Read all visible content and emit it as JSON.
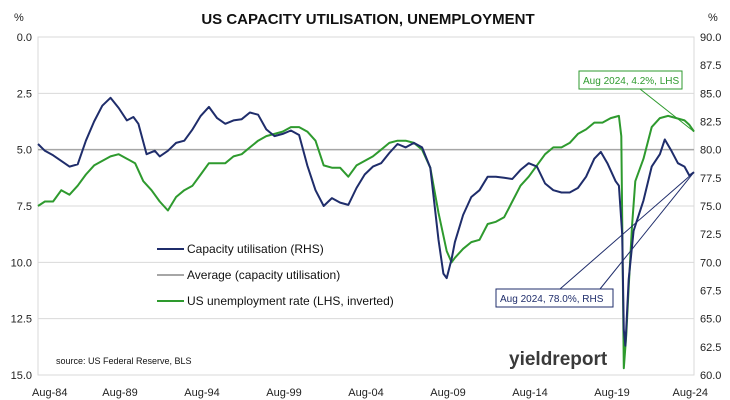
{
  "chart_data": {
    "type": "line",
    "title": "US CAPACITY UTILISATION, UNEMPLOYMENT",
    "source": "source: US Federal Reserve, BLS",
    "logo_text": "yieldreport",
    "y_left": {
      "label": "%",
      "ticks": [
        "0.0",
        "2.5",
        "5.0",
        "7.5",
        "10.0",
        "12.5",
        "15.0"
      ],
      "range": [
        0,
        15
      ],
      "inverted": true
    },
    "y_right": {
      "label": "%",
      "ticks": [
        "60.0",
        "62.5",
        "65.0",
        "67.5",
        "70.0",
        "72.5",
        "75.0",
        "77.5",
        "80.0",
        "82.5",
        "85.0",
        "87.5",
        "90.0"
      ],
      "range": [
        60,
        90
      ]
    },
    "x_ticks": [
      "Aug-84",
      "Aug-89",
      "Aug-94",
      "Aug-99",
      "Aug-04",
      "Aug-09",
      "Aug-14",
      "Aug-19",
      "Aug-24"
    ],
    "x_range": [
      1984.58,
      2024.58
    ],
    "colors": {
      "capacity": "#1f2d6b",
      "average": "#a6a6a6",
      "unemployment": "#2e9a2e",
      "grid": "#d9d9d9"
    },
    "average_capacity": 80.0,
    "legend": [
      {
        "label": "Capacity utilisation (RHS)",
        "key": "capacity"
      },
      {
        "label": "Average (capacity utilisation)",
        "key": "average"
      },
      {
        "label": "US unemployment rate (LHS, inverted)",
        "key": "unemployment"
      }
    ],
    "annotations": {
      "unemployment": {
        "text": "Aug 2024, 4.2%, LHS",
        "x": 2024.58,
        "y": 4.2
      },
      "capacity": {
        "text": "Aug 2024, 78.0%, RHS",
        "x": 2024.58,
        "y": 78.0
      }
    },
    "series": [
      {
        "name": "Capacity utilisation (RHS)",
        "axis": "right",
        "points": [
          [
            1984.58,
            80.5
          ],
          [
            1985.0,
            79.9
          ],
          [
            1985.5,
            79.5
          ],
          [
            1986.0,
            79.0
          ],
          [
            1986.5,
            78.5
          ],
          [
            1987.0,
            78.7
          ],
          [
            1987.5,
            80.8
          ],
          [
            1988.0,
            82.5
          ],
          [
            1988.5,
            83.9
          ],
          [
            1989.0,
            84.6
          ],
          [
            1989.5,
            83.7
          ],
          [
            1990.0,
            82.6
          ],
          [
            1990.4,
            82.9
          ],
          [
            1990.7,
            82.3
          ],
          [
            1991.2,
            79.6
          ],
          [
            1991.7,
            79.9
          ],
          [
            1992.0,
            79.4
          ],
          [
            1992.5,
            79.9
          ],
          [
            1993.0,
            80.6
          ],
          [
            1993.5,
            80.8
          ],
          [
            1994.0,
            81.8
          ],
          [
            1994.5,
            83.0
          ],
          [
            1995.0,
            83.8
          ],
          [
            1995.5,
            82.8
          ],
          [
            1996.0,
            82.3
          ],
          [
            1996.5,
            82.6
          ],
          [
            1997.0,
            82.7
          ],
          [
            1997.5,
            83.3
          ],
          [
            1998.0,
            83.1
          ],
          [
            1998.5,
            81.8
          ],
          [
            1999.0,
            81.2
          ],
          [
            1999.5,
            81.4
          ],
          [
            2000.0,
            81.7
          ],
          [
            2000.5,
            81.3
          ],
          [
            2001.0,
            78.6
          ],
          [
            2001.5,
            76.4
          ],
          [
            2002.0,
            75.0
          ],
          [
            2002.5,
            75.7
          ],
          [
            2003.0,
            75.3
          ],
          [
            2003.5,
            75.1
          ],
          [
            2004.0,
            76.6
          ],
          [
            2004.5,
            77.8
          ],
          [
            2005.0,
            78.5
          ],
          [
            2005.5,
            78.8
          ],
          [
            2006.0,
            79.7
          ],
          [
            2006.5,
            80.5
          ],
          [
            2007.0,
            80.2
          ],
          [
            2007.5,
            80.6
          ],
          [
            2008.0,
            80.2
          ],
          [
            2008.5,
            78.4
          ],
          [
            2009.0,
            72.0
          ],
          [
            2009.3,
            69.0
          ],
          [
            2009.5,
            68.6
          ],
          [
            2009.8,
            70.3
          ],
          [
            2010.0,
            71.8
          ],
          [
            2010.5,
            74.2
          ],
          [
            2011.0,
            75.8
          ],
          [
            2011.5,
            76.4
          ],
          [
            2012.0,
            77.6
          ],
          [
            2012.5,
            77.6
          ],
          [
            2013.0,
            77.5
          ],
          [
            2013.5,
            77.4
          ],
          [
            2014.0,
            78.2
          ],
          [
            2014.5,
            78.8
          ],
          [
            2015.0,
            78.5
          ],
          [
            2015.5,
            77.0
          ],
          [
            2016.0,
            76.4
          ],
          [
            2016.5,
            76.2
          ],
          [
            2017.0,
            76.2
          ],
          [
            2017.5,
            76.6
          ],
          [
            2018.0,
            77.6
          ],
          [
            2018.5,
            79.2
          ],
          [
            2018.9,
            79.8
          ],
          [
            2019.3,
            78.8
          ],
          [
            2019.8,
            77.2
          ],
          [
            2020.0,
            76.8
          ],
          [
            2020.2,
            72.5
          ],
          [
            2020.3,
            64.0
          ],
          [
            2020.4,
            62.6
          ],
          [
            2020.6,
            68.5
          ],
          [
            2020.9,
            72.8
          ],
          [
            2021.5,
            75.5
          ],
          [
            2022.0,
            78.5
          ],
          [
            2022.5,
            79.6
          ],
          [
            2022.8,
            80.9
          ],
          [
            2023.2,
            79.9
          ],
          [
            2023.6,
            78.8
          ],
          [
            2024.0,
            78.5
          ],
          [
            2024.3,
            77.7
          ],
          [
            2024.58,
            78.0
          ]
        ]
      },
      {
        "name": "US unemployment rate (LHS, inverted)",
        "axis": "left",
        "points": [
          [
            1984.58,
            7.5
          ],
          [
            1985.0,
            7.3
          ],
          [
            1985.5,
            7.3
          ],
          [
            1986.0,
            6.8
          ],
          [
            1986.5,
            7.0
          ],
          [
            1987.0,
            6.6
          ],
          [
            1987.5,
            6.1
          ],
          [
            1988.0,
            5.7
          ],
          [
            1988.5,
            5.5
          ],
          [
            1989.0,
            5.3
          ],
          [
            1989.5,
            5.2
          ],
          [
            1990.0,
            5.4
          ],
          [
            1990.5,
            5.6
          ],
          [
            1991.0,
            6.4
          ],
          [
            1991.5,
            6.8
          ],
          [
            1992.0,
            7.3
          ],
          [
            1992.5,
            7.7
          ],
          [
            1993.0,
            7.1
          ],
          [
            1993.5,
            6.8
          ],
          [
            1994.0,
            6.6
          ],
          [
            1994.5,
            6.1
          ],
          [
            1995.0,
            5.6
          ],
          [
            1995.5,
            5.6
          ],
          [
            1996.0,
            5.6
          ],
          [
            1996.5,
            5.3
          ],
          [
            1997.0,
            5.2
          ],
          [
            1997.5,
            4.9
          ],
          [
            1998.0,
            4.6
          ],
          [
            1998.5,
            4.4
          ],
          [
            1999.0,
            4.3
          ],
          [
            1999.5,
            4.2
          ],
          [
            2000.0,
            4.0
          ],
          [
            2000.5,
            4.0
          ],
          [
            2001.0,
            4.2
          ],
          [
            2001.5,
            4.6
          ],
          [
            2002.0,
            5.7
          ],
          [
            2002.5,
            5.8
          ],
          [
            2003.0,
            5.8
          ],
          [
            2003.5,
            6.2
          ],
          [
            2004.0,
            5.7
          ],
          [
            2004.5,
            5.5
          ],
          [
            2005.0,
            5.3
          ],
          [
            2005.5,
            5.0
          ],
          [
            2006.0,
            4.7
          ],
          [
            2006.5,
            4.6
          ],
          [
            2007.0,
            4.6
          ],
          [
            2007.5,
            4.7
          ],
          [
            2008.0,
            5.0
          ],
          [
            2008.5,
            5.8
          ],
          [
            2009.0,
            7.8
          ],
          [
            2009.5,
            9.5
          ],
          [
            2009.8,
            10.0
          ],
          [
            2010.0,
            9.8
          ],
          [
            2010.5,
            9.4
          ],
          [
            2011.0,
            9.1
          ],
          [
            2011.5,
            9.0
          ],
          [
            2012.0,
            8.3
          ],
          [
            2012.5,
            8.2
          ],
          [
            2013.0,
            8.0
          ],
          [
            2013.5,
            7.3
          ],
          [
            2014.0,
            6.6
          ],
          [
            2014.5,
            6.2
          ],
          [
            2015.0,
            5.7
          ],
          [
            2015.5,
            5.2
          ],
          [
            2016.0,
            4.9
          ],
          [
            2016.5,
            4.9
          ],
          [
            2017.0,
            4.7
          ],
          [
            2017.5,
            4.3
          ],
          [
            2018.0,
            4.1
          ],
          [
            2018.5,
            3.8
          ],
          [
            2019.0,
            3.8
          ],
          [
            2019.5,
            3.6
          ],
          [
            2020.0,
            3.5
          ],
          [
            2020.15,
            4.4
          ],
          [
            2020.3,
            14.7
          ],
          [
            2020.45,
            13.2
          ],
          [
            2020.6,
            11.1
          ],
          [
            2020.8,
            8.4
          ],
          [
            2021.0,
            6.4
          ],
          [
            2021.5,
            5.4
          ],
          [
            2022.0,
            4.0
          ],
          [
            2022.5,
            3.6
          ],
          [
            2023.0,
            3.5
          ],
          [
            2023.5,
            3.6
          ],
          [
            2024.0,
            3.7
          ],
          [
            2024.3,
            3.9
          ],
          [
            2024.58,
            4.2
          ]
        ]
      }
    ]
  }
}
